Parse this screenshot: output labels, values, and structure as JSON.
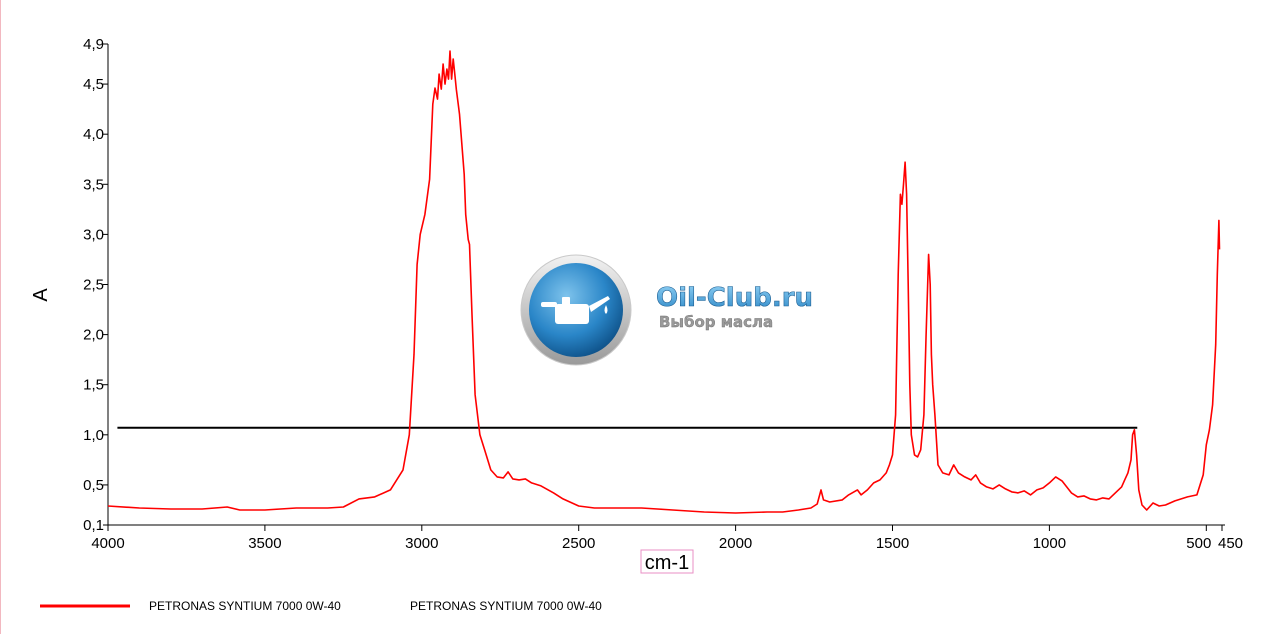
{
  "watermark": {
    "title": "Oil-Club.ru",
    "subtitle": "Выбор масла",
    "logo_icon": "oil-can-icon"
  },
  "legend": {
    "line_label": "PETRONAS SYNTIUM 7000 0W-40",
    "line_label_2": "PETRONAS SYNTIUM 7000 0W-40"
  },
  "chart_data": {
    "type": "line",
    "xlabel": "cm-1",
    "ylabel": "A",
    "xlim": [
      4000,
      450
    ],
    "ylim": [
      0.1,
      4.9
    ],
    "x_reversed": true,
    "x_ticks": [
      {
        "value": 4000,
        "label": "4000"
      },
      {
        "value": 3500,
        "label": "3500"
      },
      {
        "value": 3000,
        "label": "3000"
      },
      {
        "value": 2500,
        "label": "2500"
      },
      {
        "value": 2000,
        "label": "2000"
      },
      {
        "value": 1500,
        "label": "1500"
      },
      {
        "value": 1000,
        "label": "1000"
      },
      {
        "value": 500,
        "label": "500"
      },
      {
        "value": 450,
        "label": "450"
      }
    ],
    "y_ticks": [
      {
        "value": 0.1,
        "label": "0,1"
      },
      {
        "value": 0.5,
        "label": "0,5"
      },
      {
        "value": 1.0,
        "label": "1,0"
      },
      {
        "value": 1.5,
        "label": "1,5"
      },
      {
        "value": 2.0,
        "label": "2,0"
      },
      {
        "value": 2.5,
        "label": "2,5"
      },
      {
        "value": 3.0,
        "label": "3,0"
      },
      {
        "value": 3.5,
        "label": "3,5"
      },
      {
        "value": 4.0,
        "label": "4,0"
      },
      {
        "value": 4.5,
        "label": "4,5"
      },
      {
        "value": 4.9,
        "label": "4,9"
      }
    ],
    "grid": false,
    "legend_position": "bottom-left",
    "reference_line": {
      "y": 1.07,
      "x_start": 3970,
      "x_end": 720,
      "color": "#000000"
    },
    "series": [
      {
        "name": "PETRONAS SYNTIUM 7000 0W-40",
        "color": "#ff0000",
        "points": [
          [
            4000,
            0.29
          ],
          [
            3900,
            0.27
          ],
          [
            3800,
            0.26
          ],
          [
            3700,
            0.26
          ],
          [
            3620,
            0.28
          ],
          [
            3580,
            0.25
          ],
          [
            3500,
            0.25
          ],
          [
            3400,
            0.27
          ],
          [
            3300,
            0.27
          ],
          [
            3250,
            0.28
          ],
          [
            3200,
            0.36
          ],
          [
            3150,
            0.38
          ],
          [
            3100,
            0.45
          ],
          [
            3060,
            0.65
          ],
          [
            3040,
            1.0
          ],
          [
            3025,
            1.8
          ],
          [
            3015,
            2.7
          ],
          [
            3005,
            3.0
          ],
          [
            2990,
            3.2
          ],
          [
            2975,
            3.55
          ],
          [
            2965,
            4.3
          ],
          [
            2958,
            4.46
          ],
          [
            2950,
            4.35
          ],
          [
            2945,
            4.6
          ],
          [
            2938,
            4.45
          ],
          [
            2932,
            4.7
          ],
          [
            2926,
            4.5
          ],
          [
            2920,
            4.65
          ],
          [
            2915,
            4.55
          ],
          [
            2910,
            4.83
          ],
          [
            2905,
            4.55
          ],
          [
            2900,
            4.75
          ],
          [
            2895,
            4.6
          ],
          [
            2890,
            4.45
          ],
          [
            2880,
            4.2
          ],
          [
            2865,
            3.6
          ],
          [
            2860,
            3.2
          ],
          [
            2852,
            2.95
          ],
          [
            2848,
            2.9
          ],
          [
            2840,
            2.2
          ],
          [
            2830,
            1.4
          ],
          [
            2815,
            1.0
          ],
          [
            2800,
            0.85
          ],
          [
            2780,
            0.65
          ],
          [
            2760,
            0.58
          ],
          [
            2740,
            0.57
          ],
          [
            2725,
            0.63
          ],
          [
            2710,
            0.56
          ],
          [
            2690,
            0.55
          ],
          [
            2670,
            0.56
          ],
          [
            2650,
            0.52
          ],
          [
            2620,
            0.49
          ],
          [
            2580,
            0.42
          ],
          [
            2550,
            0.36
          ],
          [
            2500,
            0.29
          ],
          [
            2450,
            0.27
          ],
          [
            2400,
            0.27
          ],
          [
            2300,
            0.27
          ],
          [
            2200,
            0.25
          ],
          [
            2100,
            0.23
          ],
          [
            2000,
            0.22
          ],
          [
            1900,
            0.23
          ],
          [
            1850,
            0.23
          ],
          [
            1800,
            0.25
          ],
          [
            1760,
            0.27
          ],
          [
            1740,
            0.31
          ],
          [
            1728,
            0.45
          ],
          [
            1720,
            0.35
          ],
          [
            1700,
            0.33
          ],
          [
            1660,
            0.35
          ],
          [
            1640,
            0.4
          ],
          [
            1612,
            0.45
          ],
          [
            1600,
            0.4
          ],
          [
            1580,
            0.45
          ],
          [
            1560,
            0.52
          ],
          [
            1540,
            0.55
          ],
          [
            1520,
            0.62
          ],
          [
            1510,
            0.7
          ],
          [
            1500,
            0.8
          ],
          [
            1490,
            1.2
          ],
          [
            1482,
            2.6
          ],
          [
            1475,
            3.4
          ],
          [
            1470,
            3.3
          ],
          [
            1465,
            3.5
          ],
          [
            1460,
            3.72
          ],
          [
            1455,
            3.4
          ],
          [
            1450,
            2.5
          ],
          [
            1445,
            1.5
          ],
          [
            1440,
            1.0
          ],
          [
            1430,
            0.8
          ],
          [
            1420,
            0.78
          ],
          [
            1410,
            0.85
          ],
          [
            1400,
            1.2
          ],
          [
            1393,
            2.0
          ],
          [
            1385,
            2.8
          ],
          [
            1380,
            2.5
          ],
          [
            1376,
            1.8
          ],
          [
            1372,
            1.5
          ],
          [
            1365,
            1.2
          ],
          [
            1355,
            0.7
          ],
          [
            1340,
            0.62
          ],
          [
            1320,
            0.6
          ],
          [
            1305,
            0.7
          ],
          [
            1290,
            0.62
          ],
          [
            1270,
            0.58
          ],
          [
            1250,
            0.55
          ],
          [
            1235,
            0.6
          ],
          [
            1220,
            0.52
          ],
          [
            1200,
            0.48
          ],
          [
            1180,
            0.46
          ],
          [
            1160,
            0.5
          ],
          [
            1140,
            0.46
          ],
          [
            1120,
            0.43
          ],
          [
            1100,
            0.42
          ],
          [
            1080,
            0.44
          ],
          [
            1060,
            0.4
          ],
          [
            1040,
            0.45
          ],
          [
            1020,
            0.47
          ],
          [
            1000,
            0.52
          ],
          [
            980,
            0.58
          ],
          [
            960,
            0.54
          ],
          [
            945,
            0.48
          ],
          [
            930,
            0.42
          ],
          [
            910,
            0.38
          ],
          [
            890,
            0.39
          ],
          [
            870,
            0.36
          ],
          [
            850,
            0.35
          ],
          [
            830,
            0.37
          ],
          [
            810,
            0.36
          ],
          [
            790,
            0.42
          ],
          [
            770,
            0.48
          ],
          [
            760,
            0.55
          ],
          [
            750,
            0.62
          ],
          [
            740,
            0.75
          ],
          [
            735,
            1.0
          ],
          [
            729,
            1.05
          ],
          [
            722,
            0.8
          ],
          [
            715,
            0.45
          ],
          [
            705,
            0.3
          ],
          [
            690,
            0.25
          ],
          [
            670,
            0.32
          ],
          [
            650,
            0.29
          ],
          [
            630,
            0.3
          ],
          [
            600,
            0.34
          ],
          [
            560,
            0.38
          ],
          [
            530,
            0.4
          ],
          [
            510,
            0.6
          ],
          [
            500,
            0.9
          ],
          [
            490,
            1.05
          ],
          [
            480,
            1.3
          ],
          [
            470,
            1.9
          ],
          [
            465,
            2.6
          ],
          [
            460,
            3.14
          ],
          [
            458,
            2.85
          ]
        ]
      }
    ]
  }
}
